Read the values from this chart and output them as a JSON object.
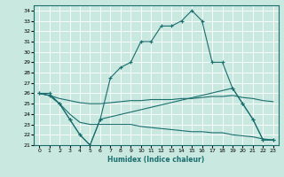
{
  "xlabel": "Humidex (Indice chaleur)",
  "xlim": [
    -0.5,
    23.5
  ],
  "ylim": [
    21,
    34.5
  ],
  "yticks": [
    21,
    22,
    23,
    24,
    25,
    26,
    27,
    28,
    29,
    30,
    31,
    32,
    33,
    34
  ],
  "xticks": [
    0,
    1,
    2,
    3,
    4,
    5,
    6,
    7,
    8,
    9,
    10,
    11,
    12,
    13,
    14,
    15,
    16,
    17,
    18,
    19,
    20,
    21,
    22,
    23
  ],
  "bg_color": "#c8e8e0",
  "line_color": "#1a6e6e",
  "grid_color": "#ffffff",
  "line1_x": [
    0,
    1,
    2,
    3,
    4,
    5,
    6,
    7,
    8,
    9,
    10,
    11,
    12,
    13,
    14,
    15,
    16,
    17,
    18,
    19,
    20,
    21,
    22,
    23
  ],
  "line1_y": [
    26,
    26,
    25,
    23.5,
    22,
    21,
    23.5,
    27.5,
    28.5,
    29,
    31,
    31,
    32.5,
    32.5,
    33,
    34,
    33,
    29,
    29,
    26.5,
    25,
    23.5,
    21.5,
    21.5
  ],
  "line2_x": [
    0,
    1,
    2,
    3,
    4,
    5,
    6,
    7,
    8,
    9,
    10,
    11,
    12,
    13,
    14,
    15,
    16,
    17,
    18,
    19,
    20,
    21,
    22,
    23
  ],
  "line2_y": [
    26,
    25.8,
    25.5,
    25.3,
    25.1,
    25.0,
    25.0,
    25.1,
    25.2,
    25.3,
    25.3,
    25.4,
    25.4,
    25.4,
    25.5,
    25.5,
    25.6,
    25.7,
    25.7,
    25.8,
    25.6,
    25.5,
    25.3,
    25.2
  ],
  "line3_x": [
    0,
    1,
    2,
    3,
    4,
    5,
    6,
    7,
    8,
    9,
    10,
    11,
    12,
    13,
    14,
    15,
    16,
    17,
    18,
    19,
    20,
    21,
    22,
    23
  ],
  "line3_y": [
    26,
    25.8,
    25.0,
    24.0,
    23.2,
    23.0,
    23.0,
    23.0,
    23.0,
    23.0,
    22.8,
    22.7,
    22.6,
    22.5,
    22.4,
    22.3,
    22.3,
    22.2,
    22.2,
    22.0,
    21.9,
    21.8,
    21.6,
    21.5
  ],
  "line4_x": [
    0,
    1,
    2,
    3,
    4,
    5,
    6,
    19,
    20,
    21,
    22,
    23
  ],
  "line4_y": [
    26,
    25.8,
    25.0,
    23.5,
    22,
    21,
    23.5,
    26.5,
    25,
    23.5,
    21.5,
    21.5
  ]
}
